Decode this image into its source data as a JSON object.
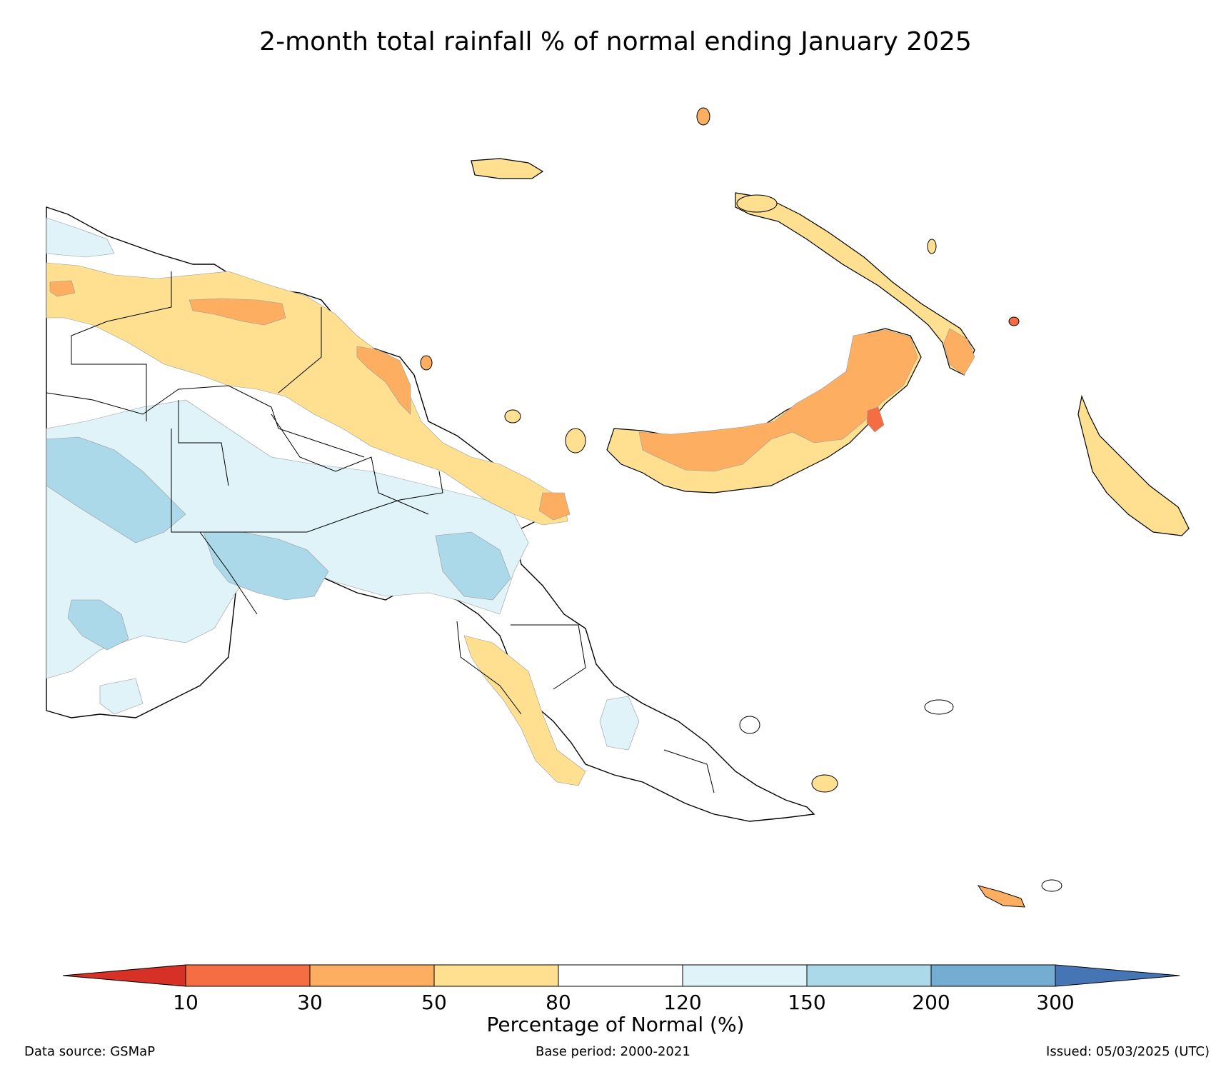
{
  "title": "2-month total rainfall % of normal ending January 2025",
  "colorbar": {
    "label": "Percentage of Normal (%)",
    "ticks": [
      "10",
      "30",
      "50",
      "80",
      "120",
      "150",
      "200",
      "300"
    ],
    "colors": {
      "below_10": "#d73027",
      "10_30": "#f46d43",
      "30_50": "#fdae61",
      "50_80": "#fee090",
      "80_120": "#ffffff",
      "120_150": "#e0f3f8",
      "150_200": "#abd9e9",
      "200_300": "#74add1",
      "above_300": "#4575b4"
    }
  },
  "footer": {
    "source": "Data source: GSMaP",
    "base_period": "Base period: 2000-2021",
    "issued": "Issued: 05/03/2025 (UTC)"
  }
}
